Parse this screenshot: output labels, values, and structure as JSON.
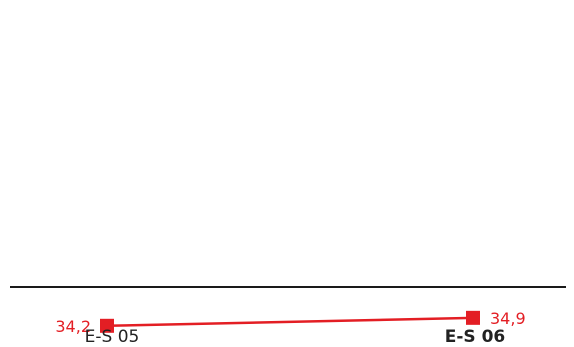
{
  "chart_data": {
    "type": "line",
    "categories": [
      "E-S 05",
      "E-S 06"
    ],
    "bold_categories": [
      false,
      true
    ],
    "series": [
      {
        "values": [
          34.2,
          34.9
        ],
        "labels": [
          "34,2",
          "34,9"
        ],
        "color": "#e31e24"
      }
    ],
    "ylim": [
      20,
      50
    ],
    "grid": false,
    "legend": "none"
  },
  "colors": {
    "series": "#e31e24",
    "axis": "#1a1a1a",
    "text": "#222222"
  }
}
